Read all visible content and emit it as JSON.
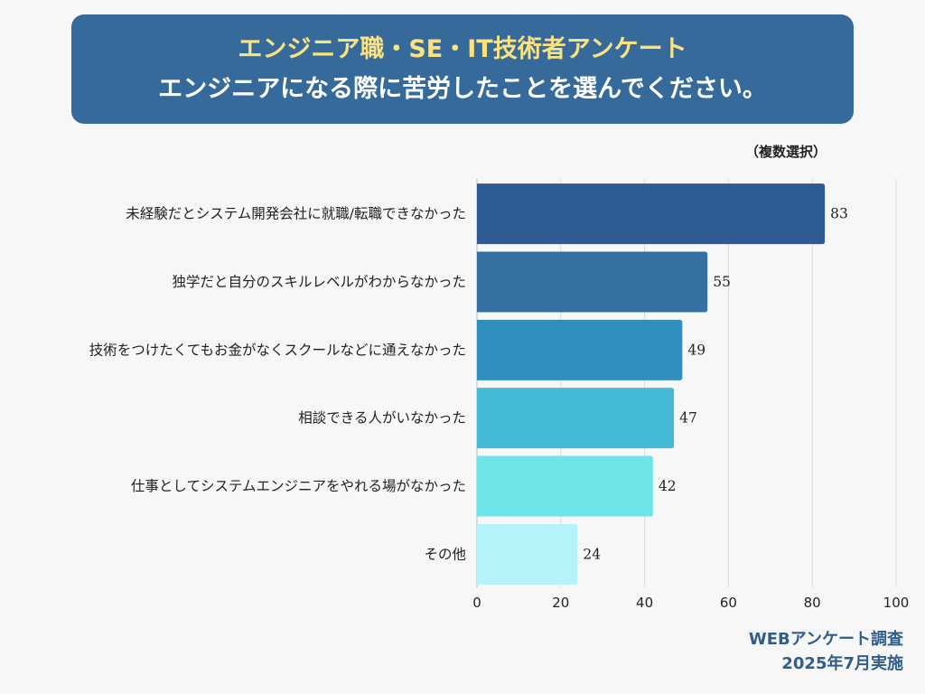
{
  "header": {
    "title_line1": "エンジニア職・SE・IT技術者アンケート",
    "title_line2": "エンジニアになる際に苦労したことを選んでください。"
  },
  "note": "（複数選択）",
  "footer": {
    "line1": "WEBアンケート調査",
    "line2": "2025年7月実施"
  },
  "chart_data": {
    "type": "bar",
    "orientation": "horizontal",
    "categories": [
      "未経験だとシステム開発会社に就職/転職できなかった",
      "独学だと自分のスキルレベルがわからなかった",
      "技術をつけたくてもお金がなくスクールなどに通えなかった",
      "相談できる人がいなかった",
      "仕事としてシステムエンジニアをやれる場がなかった",
      "その他"
    ],
    "values": [
      83,
      55,
      49,
      47,
      42,
      24
    ],
    "colors": [
      "#2e5b94",
      "#3670a3",
      "#2f8fbf",
      "#45bad6",
      "#6ce4e8",
      "#b4f3f8"
    ],
    "xlim": [
      0,
      100
    ],
    "xticks": [
      0,
      20,
      40,
      60,
      80,
      100
    ],
    "grid": true
  }
}
